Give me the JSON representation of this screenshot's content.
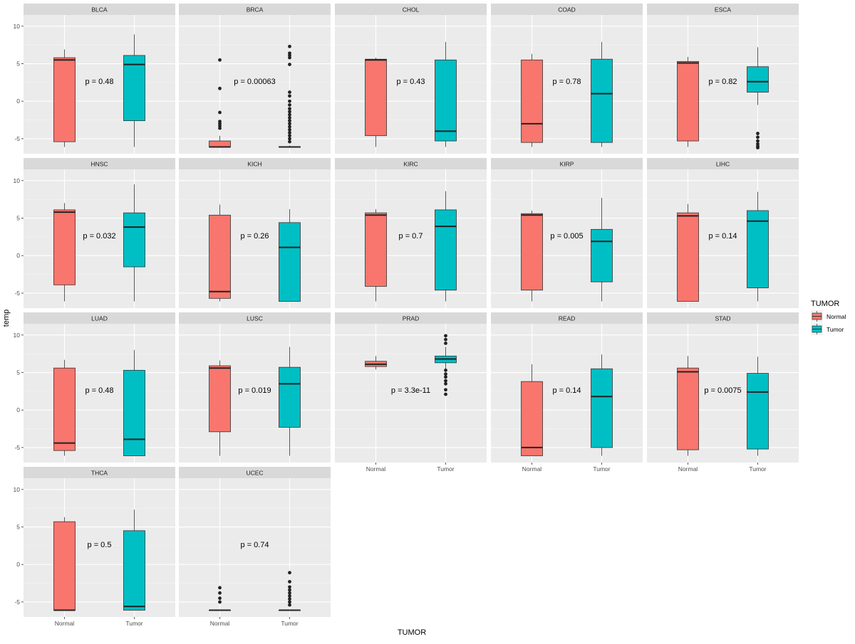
{
  "chart_data": {
    "type": "boxplot",
    "facet": "cancer_type",
    "ylabel": "temp",
    "xlabel": "TUMOR",
    "ylim": [
      -7,
      11.5
    ],
    "y_ticks": [
      -5,
      0,
      5,
      10
    ],
    "categories": [
      "Normal",
      "Tumor"
    ],
    "legend": {
      "title": "TUMOR",
      "position": "right",
      "items": [
        {
          "label": "Normal",
          "color": "#F8766D"
        },
        {
          "label": "Tumor",
          "color": "#00BFC4"
        }
      ]
    },
    "panels": [
      {
        "name": "BLCA",
        "p": "p = 0.48",
        "normal": {
          "min": -6.1,
          "q1": -5.4,
          "median": 5.5,
          "q3": 5.8,
          "max": 6.9,
          "outliers": []
        },
        "tumor": {
          "min": -6.1,
          "q1": -2.6,
          "median": 4.9,
          "q3": 6.1,
          "max": 8.9,
          "outliers": []
        }
      },
      {
        "name": "BRCA",
        "p": "p = 0.00063",
        "normal": {
          "min": -6.2,
          "q1": -6.1,
          "median": -6.1,
          "q3": -5.3,
          "max": -4.6,
          "outliers": [
            5.5,
            1.7,
            -1.5,
            -2.7,
            -3.0,
            -3.3,
            -3.6
          ]
        },
        "tumor": {
          "min": -6.2,
          "q1": -6.15,
          "median": -6.1,
          "q3": -6.05,
          "max": -5.9,
          "outliers": [
            7.3,
            6.4,
            6.1,
            5.8,
            4.9,
            1.2,
            0.7,
            0.0,
            -0.5,
            -1.0,
            -1.4,
            -1.8,
            -2.2,
            -2.6,
            -3.0,
            -3.4,
            -3.8,
            -4.2,
            -4.6,
            -5.0,
            -5.4
          ]
        }
      },
      {
        "name": "CHOL",
        "p": "p = 0.43",
        "normal": {
          "min": -6.1,
          "q1": -4.6,
          "median": 5.5,
          "q3": 5.6,
          "max": 5.8,
          "outliers": []
        },
        "tumor": {
          "min": -6.1,
          "q1": -5.3,
          "median": -4.0,
          "q3": 5.5,
          "max": 7.9,
          "outliers": []
        }
      },
      {
        "name": "COAD",
        "p": "p = 0.78",
        "normal": {
          "min": -6.1,
          "q1": -5.5,
          "median": -3.0,
          "q3": 5.5,
          "max": 6.3,
          "outliers": []
        },
        "tumor": {
          "min": -6.1,
          "q1": -5.5,
          "median": 1.0,
          "q3": 5.6,
          "max": 7.9,
          "outliers": []
        }
      },
      {
        "name": "ESCA",
        "p": "p = 0.82",
        "normal": {
          "min": -6.1,
          "q1": -5.3,
          "median": 5.1,
          "q3": 5.3,
          "max": 5.9,
          "outliers": []
        },
        "tumor": {
          "min": -0.5,
          "q1": 1.2,
          "median": 2.6,
          "q3": 4.6,
          "max": 7.2,
          "outliers": [
            -4.3,
            -4.8,
            -5.3,
            -5.7,
            -6.0,
            -6.2
          ]
        }
      },
      {
        "name": "HNSC",
        "p": "p = 0.032",
        "normal": {
          "min": -6.1,
          "q1": -3.9,
          "median": 5.8,
          "q3": 6.1,
          "max": 7.0,
          "outliers": []
        },
        "tumor": {
          "min": -6.1,
          "q1": -1.5,
          "median": 3.8,
          "q3": 5.7,
          "max": 9.5,
          "outliers": []
        }
      },
      {
        "name": "KICH",
        "p": "p = 0.26",
        "normal": {
          "min": -6.1,
          "q1": -5.7,
          "median": -4.8,
          "q3": 5.4,
          "max": 6.8,
          "outliers": []
        },
        "tumor": {
          "min": -6.1,
          "q1": -6.1,
          "median": 1.1,
          "q3": 4.4,
          "max": 6.2,
          "outliers": []
        }
      },
      {
        "name": "KIRC",
        "p": "p = 0.7",
        "normal": {
          "min": -6.1,
          "q1": -4.1,
          "median": 5.4,
          "q3": 5.7,
          "max": 6.2,
          "outliers": []
        },
        "tumor": {
          "min": -6.1,
          "q1": -4.6,
          "median": 3.9,
          "q3": 6.1,
          "max": 8.6,
          "outliers": []
        }
      },
      {
        "name": "KIRP",
        "p": "p = 0.005",
        "normal": {
          "min": -6.1,
          "q1": -4.6,
          "median": 5.4,
          "q3": 5.6,
          "max": 6.0,
          "outliers": []
        },
        "tumor": {
          "min": -6.1,
          "q1": -3.5,
          "median": 1.9,
          "q3": 3.5,
          "max": 7.7,
          "outliers": []
        }
      },
      {
        "name": "LIHC",
        "p": "p = 0.14",
        "normal": {
          "min": -6.1,
          "q1": -6.1,
          "median": 5.3,
          "q3": 5.7,
          "max": 6.9,
          "outliers": []
        },
        "tumor": {
          "min": -6.1,
          "q1": -4.3,
          "median": 4.6,
          "q3": 6.0,
          "max": 8.5,
          "outliers": []
        }
      },
      {
        "name": "LUAD",
        "p": "p = 0.48",
        "normal": {
          "min": -6.1,
          "q1": -5.4,
          "median": -4.4,
          "q3": 5.6,
          "max": 6.7,
          "outliers": []
        },
        "tumor": {
          "min": -6.1,
          "q1": -6.1,
          "median": -3.9,
          "q3": 5.3,
          "max": 8.0,
          "outliers": []
        }
      },
      {
        "name": "LUSC",
        "p": "p = 0.019",
        "normal": {
          "min": -6.1,
          "q1": -2.9,
          "median": 5.6,
          "q3": 5.9,
          "max": 6.6,
          "outliers": []
        },
        "tumor": {
          "min": -6.1,
          "q1": -2.3,
          "median": 3.5,
          "q3": 5.7,
          "max": 8.4,
          "outliers": []
        }
      },
      {
        "name": "PRAD",
        "p": "p = 3.3e-11",
        "normal": {
          "min": 5.4,
          "q1": 5.8,
          "median": 6.1,
          "q3": 6.5,
          "max": 7.2,
          "outliers": []
        },
        "tumor": {
          "min": 5.5,
          "q1": 6.3,
          "median": 6.8,
          "q3": 7.2,
          "max": 8.4,
          "outliers": [
            9.9,
            9.4,
            8.9,
            5.3,
            4.8,
            4.4,
            3.9,
            3.5,
            2.7,
            2.1
          ]
        }
      },
      {
        "name": "READ",
        "p": "p = 0.14",
        "normal": {
          "min": -6.1,
          "q1": -6.1,
          "median": -5.0,
          "q3": 3.8,
          "max": 6.1,
          "outliers": []
        },
        "tumor": {
          "min": -6.1,
          "q1": -5.0,
          "median": 1.8,
          "q3": 5.5,
          "max": 7.4,
          "outliers": []
        }
      },
      {
        "name": "STAD",
        "p": "p = 0.0075",
        "normal": {
          "min": -6.1,
          "q1": -5.3,
          "median": 5.1,
          "q3": 5.6,
          "max": 7.2,
          "outliers": []
        },
        "tumor": {
          "min": -6.1,
          "q1": -5.2,
          "median": 2.4,
          "q3": 4.9,
          "max": 7.1,
          "outliers": []
        }
      },
      {
        "name": "THCA",
        "p": "p = 0.5",
        "normal": {
          "min": -6.1,
          "q1": -6.1,
          "median": -6.1,
          "q3": 5.7,
          "max": 6.3,
          "outliers": []
        },
        "tumor": {
          "min": -6.1,
          "q1": -6.1,
          "median": -5.6,
          "q3": 4.5,
          "max": 7.3,
          "outliers": []
        }
      },
      {
        "name": "UCEC",
        "p": "p = 0.74",
        "normal": {
          "min": -6.15,
          "q1": -6.12,
          "median": -6.1,
          "q3": -6.08,
          "max": -6.05,
          "outliers": [
            -3.1,
            -3.8,
            -4.5,
            -5.0
          ]
        },
        "tumor": {
          "min": -6.15,
          "q1": -6.12,
          "median": -6.1,
          "q3": -6.08,
          "max": -6.05,
          "outliers": [
            -1.1,
            -2.3,
            -3.0,
            -3.4,
            -3.8,
            -4.2,
            -4.6,
            -5.0,
            -5.4
          ]
        }
      }
    ]
  }
}
